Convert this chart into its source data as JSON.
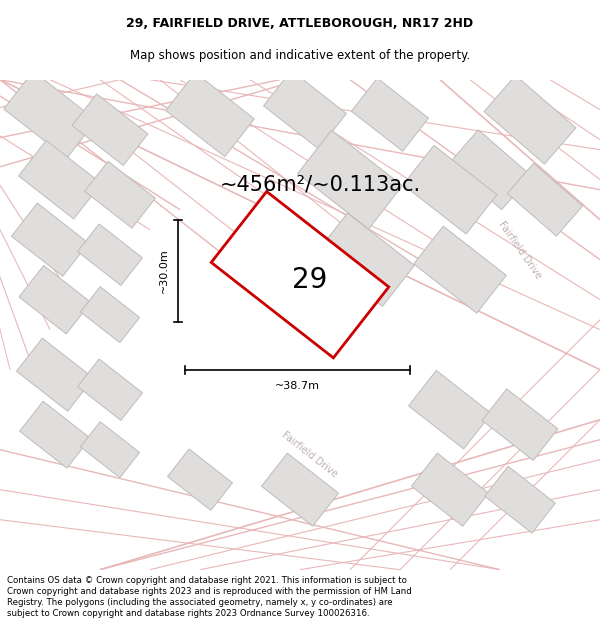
{
  "title_line1": "29, FAIRFIELD DRIVE, ATTLEBOROUGH, NR17 2HD",
  "title_line2": "Map shows position and indicative extent of the property.",
  "footer_text": "Contains OS data © Crown copyright and database right 2021. This information is subject to Crown copyright and database rights 2023 and is reproduced with the permission of HM Land Registry. The polygons (including the associated geometry, namely x, y co-ordinates) are subject to Crown copyright and database rights 2023 Ordnance Survey 100026316.",
  "area_label": "~456m²/~0.113ac.",
  "number_label": "29",
  "width_label": "~38.7m",
  "height_label": "~30.0m",
  "bg_color": "#ffffff",
  "map_bg": "#f5f3f3",
  "plot_outline_color": "#cc0000",
  "building_fill": "#e0dddd",
  "building_edge": "#c0bbbb",
  "road_fill": "#f8f0f0",
  "road_line_color": "#e8b8b8",
  "title_fontsize": 9,
  "subtitle_fontsize": 8.5,
  "area_fontsize": 15,
  "number_fontsize": 20,
  "dim_fontsize": 8,
  "footer_fontsize": 6.2,
  "road_label_color": "#c0b0b0"
}
